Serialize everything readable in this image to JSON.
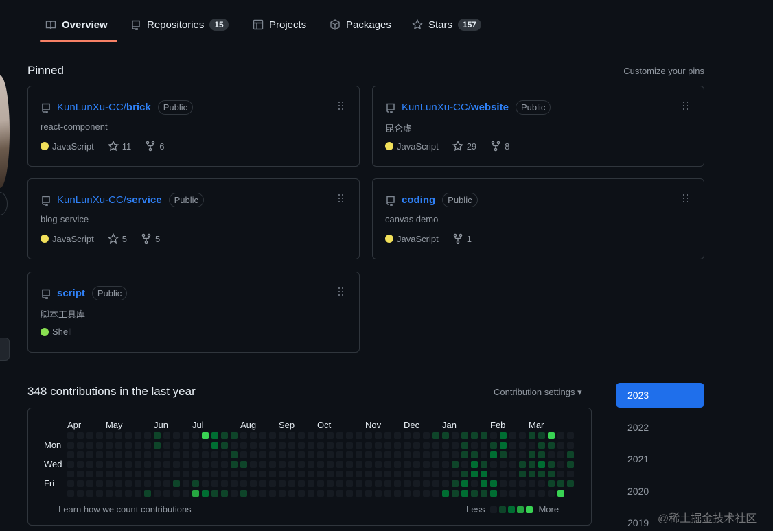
{
  "nav": {
    "tabs": [
      {
        "label": "Overview"
      },
      {
        "label": "Repositories",
        "count": "15"
      },
      {
        "label": "Projects"
      },
      {
        "label": "Packages"
      },
      {
        "label": "Stars",
        "count": "157"
      }
    ]
  },
  "pinned": {
    "title": "Pinned",
    "customize": "Customize your pins",
    "cards": [
      {
        "owner": "KunLunXu-CC/",
        "name": "brick",
        "visibility": "Public",
        "description": "react-component",
        "language": "JavaScript",
        "language_color": "#f1e05a",
        "stars": "11",
        "forks": "6"
      },
      {
        "owner": "KunLunXu-CC/",
        "name": "website",
        "visibility": "Public",
        "description": "昆仑虚",
        "language": "JavaScript",
        "language_color": "#f1e05a",
        "stars": "29",
        "forks": "8"
      },
      {
        "owner": "KunLunXu-CC/",
        "name": "service",
        "visibility": "Public",
        "description": "blog-service",
        "language": "JavaScript",
        "language_color": "#f1e05a",
        "stars": "5",
        "forks": "5"
      },
      {
        "owner": "",
        "name": "coding",
        "visibility": "Public",
        "description": "canvas demo",
        "language": "JavaScript",
        "language_color": "#f1e05a",
        "forks": "1"
      },
      {
        "owner": "",
        "name": "script",
        "visibility": "Public",
        "description": "脚本工具库",
        "language": "Shell",
        "language_color": "#89e051"
      }
    ]
  },
  "contrib": {
    "title": "348 contributions in the last year",
    "settings": "Contribution settings ▾",
    "learn": "Learn how we count contributions",
    "less": "Less",
    "more": "More",
    "days": [
      "Mon",
      "Wed",
      "Fri"
    ],
    "months": [
      {
        "label": "Apr",
        "week": 0
      },
      {
        "label": "May",
        "week": 4
      },
      {
        "label": "Jun",
        "week": 9
      },
      {
        "label": "Jul",
        "week": 13
      },
      {
        "label": "Aug",
        "week": 18
      },
      {
        "label": "Sep",
        "week": 22
      },
      {
        "label": "Oct",
        "week": 26
      },
      {
        "label": "Nov",
        "week": 31
      },
      {
        "label": "Dec",
        "week": 35
      },
      {
        "label": "Jan",
        "week": 39
      },
      {
        "label": "Feb",
        "week": 44
      },
      {
        "label": "Mar",
        "week": 48
      }
    ],
    "weeks": 53,
    "level_colors": [
      "#161b22",
      "#0e4429",
      "#006d32",
      "#26a641",
      "#39d353"
    ],
    "active": [
      [
        [
          9,
          1
        ],
        [
          14,
          4
        ],
        [
          15,
          2
        ],
        [
          16,
          1
        ],
        [
          17,
          1
        ],
        [
          38,
          1
        ],
        [
          39,
          1
        ],
        [
          41,
          1
        ],
        [
          42,
          1
        ],
        [
          43,
          1
        ],
        [
          45,
          2
        ],
        [
          48,
          1
        ],
        [
          49,
          1
        ],
        [
          50,
          4
        ]
      ],
      [
        [
          9,
          1
        ],
        [
          15,
          2
        ],
        [
          16,
          1
        ],
        [
          41,
          1
        ],
        [
          44,
          1
        ],
        [
          45,
          2
        ],
        [
          49,
          1
        ],
        [
          50,
          1
        ]
      ],
      [
        [
          17,
          1
        ],
        [
          41,
          1
        ],
        [
          42,
          1
        ],
        [
          44,
          2
        ],
        [
          45,
          1
        ],
        [
          48,
          1
        ],
        [
          49,
          1
        ],
        [
          52,
          1
        ]
      ],
      [
        [
          17,
          1
        ],
        [
          18,
          1
        ],
        [
          40,
          1
        ],
        [
          42,
          2
        ],
        [
          43,
          1
        ],
        [
          47,
          1
        ],
        [
          48,
          1
        ],
        [
          49,
          2
        ],
        [
          50,
          1
        ],
        [
          52,
          1
        ]
      ],
      [
        [
          41,
          1
        ],
        [
          42,
          2
        ],
        [
          43,
          2
        ],
        [
          47,
          1
        ],
        [
          48,
          1
        ],
        [
          49,
          1
        ],
        [
          50,
          1
        ]
      ],
      [
        [
          11,
          1
        ],
        [
          13,
          1
        ],
        [
          40,
          1
        ],
        [
          41,
          2
        ],
        [
          43,
          2
        ],
        [
          44,
          2
        ],
        [
          50,
          1
        ],
        [
          51,
          1
        ],
        [
          52,
          1
        ]
      ],
      [
        [
          8,
          1
        ],
        [
          13,
          3
        ],
        [
          14,
          2
        ],
        [
          15,
          1
        ],
        [
          16,
          1
        ],
        [
          18,
          1
        ],
        [
          39,
          2
        ],
        [
          40,
          1
        ],
        [
          41,
          2
        ],
        [
          42,
          1
        ],
        [
          43,
          1
        ],
        [
          44,
          2
        ],
        [
          51,
          4
        ]
      ]
    ]
  },
  "years": [
    "2023",
    "2022",
    "2021",
    "2020",
    "2019"
  ],
  "watermark": "@稀土掘金技术社区"
}
